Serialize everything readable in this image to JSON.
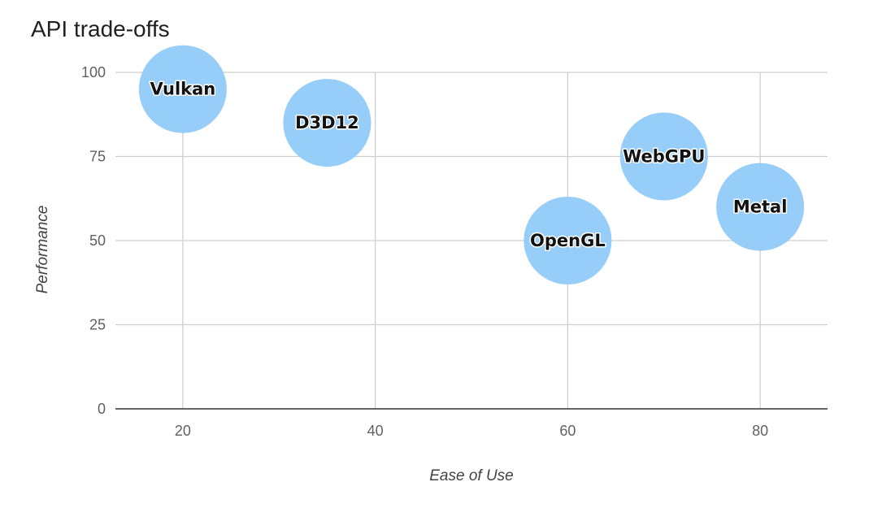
{
  "chart_data": {
    "type": "bubble",
    "title": "API trade-offs",
    "xlabel": "Ease of Use",
    "ylabel": "Performance",
    "xlim": [
      13,
      87
    ],
    "ylim": [
      0,
      100
    ],
    "xticks": [
      20,
      40,
      60,
      80
    ],
    "yticks": [
      0,
      25,
      50,
      75,
      100
    ],
    "grid": true,
    "legend": "none",
    "bubble_color": "#90caf9",
    "points": [
      {
        "label": "Vulkan",
        "x": 20,
        "y": 95
      },
      {
        "label": "D3D12",
        "x": 35,
        "y": 85
      },
      {
        "label": "OpenGL",
        "x": 60,
        "y": 50
      },
      {
        "label": "WebGPU",
        "x": 70,
        "y": 75
      },
      {
        "label": "Metal",
        "x": 80,
        "y": 60
      }
    ]
  }
}
